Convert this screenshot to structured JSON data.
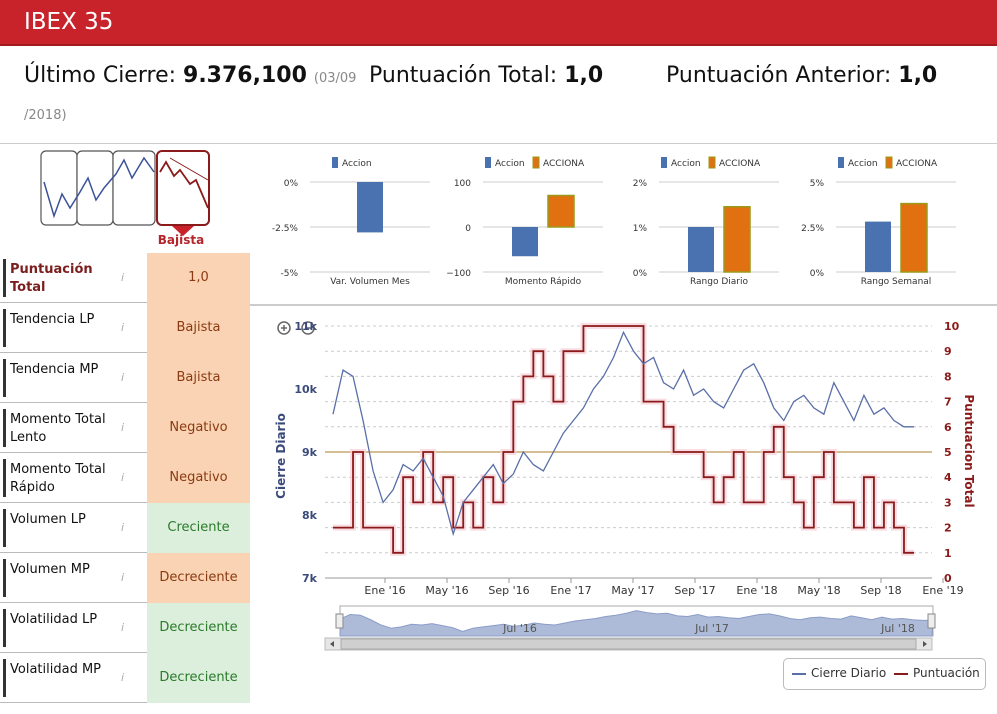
{
  "header": {
    "title": "IBEX 35"
  },
  "summary": {
    "last_close_label": "Último Cierre:",
    "last_close_value": "9.376,100",
    "last_close_date_part1": "(03/09",
    "last_close_date_part2": "/2018)",
    "total_score_label": "Puntuación Total:",
    "total_score_value": "1,0",
    "prev_score_label": "Puntuación Anterior:",
    "prev_score_value": "1,0"
  },
  "trend_widget": {
    "label": "Bajista",
    "icon": "trend-down-icon"
  },
  "indicators": [
    {
      "label": "Puntuación Total",
      "value": "1,0",
      "style": "orange",
      "bold": true
    },
    {
      "label": "Tendencia LP",
      "value": "Bajista",
      "style": "orange"
    },
    {
      "label": "Tendencia MP",
      "value": "Bajista",
      "style": "orange"
    },
    {
      "label": "Momento Total Lento",
      "value": "Negativo",
      "style": "orange"
    },
    {
      "label": "Momento Total Rápido",
      "value": "Negativo",
      "style": "orange"
    },
    {
      "label": "Volumen LP",
      "value": "Creciente",
      "style": "green"
    },
    {
      "label": "Volumen MP",
      "value": "Decreciente",
      "style": "orange"
    },
    {
      "label": "Volatilidad LP",
      "value": "Decreciente",
      "style": "green"
    },
    {
      "label": "Volatilidad MP",
      "value": "Decreciente",
      "style": "green"
    }
  ],
  "colors": {
    "accion": "#4a72b0",
    "acciona": "#e07010",
    "acciona_border": "#9a9a1a",
    "close_line": "#5a6fa8",
    "score_line": "#8b1a1a",
    "header": "#c8232b"
  },
  "chart_data": [
    {
      "type": "bar",
      "xlabel": "Var. Volumen Mes",
      "series": [
        {
          "name": "Accion",
          "values": [
            -2.8
          ]
        }
      ],
      "yticks": [
        "0%",
        "-2.5%",
        "-5%"
      ],
      "ylim": [
        -5,
        0
      ]
    },
    {
      "type": "bar",
      "xlabel": "Momento Rápido",
      "series": [
        {
          "name": "Accion",
          "values": [
            -65
          ]
        },
        {
          "name": "ACCIONA",
          "values": [
            70
          ]
        }
      ],
      "yticks": [
        "100",
        "0",
        "−100"
      ],
      "ylim": [
        -100,
        100
      ]
    },
    {
      "type": "bar",
      "xlabel": "Rango Diario",
      "series": [
        {
          "name": "Accion",
          "values": [
            1.0
          ]
        },
        {
          "name": "ACCIONA",
          "values": [
            1.45
          ]
        }
      ],
      "yticks": [
        "2%",
        "1%",
        "0%"
      ],
      "ylim": [
        0,
        2
      ]
    },
    {
      "type": "bar",
      "xlabel": "Rango Semanal",
      "series": [
        {
          "name": "Accion",
          "values": [
            2.8
          ]
        },
        {
          "name": "ACCIONA",
          "values": [
            3.8
          ]
        }
      ],
      "yticks": [
        "5%",
        "2.5%",
        "0%"
      ],
      "ylim": [
        0,
        5
      ]
    },
    {
      "type": "line",
      "ylabel_left": "Cierre Diario",
      "ylabel_right": "Puntuacion Total",
      "yticks_left": [
        "11k",
        "10k",
        "9k",
        "8k",
        "7k"
      ],
      "yticks_right": [
        "10",
        "9",
        "8",
        "7",
        "6",
        "5",
        "4",
        "3",
        "2",
        "1",
        "0"
      ],
      "xticks": [
        "Ene '16",
        "May '16",
        "Sep '16",
        "Ene '17",
        "May '17",
        "Sep '17",
        "Ene '18",
        "May '18",
        "Sep '18",
        "Ene '19"
      ],
      "navigator_labels": [
        "Jul '16",
        "Jul '17",
        "Jul '18"
      ],
      "ylim_left": [
        7000,
        11000
      ],
      "ylim_right": [
        0,
        10
      ],
      "reference_line": 9000,
      "series": [
        {
          "name": "Cierre Diario",
          "t": [
            0,
            4,
            8,
            12,
            16,
            20,
            24,
            28,
            32,
            36,
            40,
            44,
            48,
            52,
            56,
            60,
            64,
            68,
            72,
            76,
            80,
            84,
            88,
            92,
            96,
            100,
            104,
            108,
            112,
            116,
            120,
            124,
            128,
            132,
            136,
            140,
            144,
            148,
            152,
            156,
            160,
            164,
            168,
            172,
            176,
            180,
            184,
            188,
            192,
            196,
            200,
            204,
            208,
            212,
            216,
            220,
            224,
            228,
            232
          ],
          "values": [
            9600,
            10300,
            10200,
            9500,
            8700,
            8200,
            8400,
            8800,
            8700,
            8900,
            8600,
            8300,
            7700,
            8200,
            8400,
            8600,
            8800,
            8500,
            8650,
            9000,
            8800,
            8700,
            9000,
            9300,
            9500,
            9700,
            10000,
            10200,
            10500,
            10900,
            10600,
            10400,
            10500,
            10100,
            10000,
            10300,
            9900,
            10000,
            9800,
            9700,
            10000,
            10300,
            10400,
            10100,
            9700,
            9500,
            9800,
            9900,
            9700,
            9600,
            10100,
            9800,
            9500,
            9900,
            9600,
            9700,
            9500,
            9400,
            9400
          ]
        },
        {
          "name": "Puntuación",
          "t": [
            0,
            8,
            12,
            16,
            20,
            24,
            28,
            32,
            36,
            40,
            44,
            48,
            52,
            56,
            60,
            64,
            68,
            72,
            76,
            80,
            84,
            88,
            92,
            96,
            100,
            104,
            108,
            112,
            116,
            120,
            124,
            128,
            132,
            136,
            140,
            144,
            148,
            152,
            156,
            160,
            164,
            168,
            172,
            176,
            180,
            184,
            188,
            192,
            196,
            200,
            204,
            208,
            212,
            216,
            220,
            224,
            228,
            232
          ],
          "values": [
            2,
            5,
            2,
            2,
            2,
            1,
            4,
            3,
            5,
            3,
            4,
            2,
            3,
            2,
            4,
            3,
            5,
            7,
            8,
            9,
            8,
            7,
            9,
            9,
            10,
            10,
            10,
            10,
            10,
            10,
            7,
            7,
            6,
            5,
            5,
            5,
            4,
            3,
            4,
            5,
            3,
            3,
            5,
            6,
            4,
            3,
            2,
            4,
            5,
            3,
            3,
            2,
            4,
            2,
            3,
            2,
            1,
            1
          ]
        }
      ]
    }
  ],
  "legend": {
    "close_label": "Cierre Diario",
    "score_label": "Puntuación"
  }
}
